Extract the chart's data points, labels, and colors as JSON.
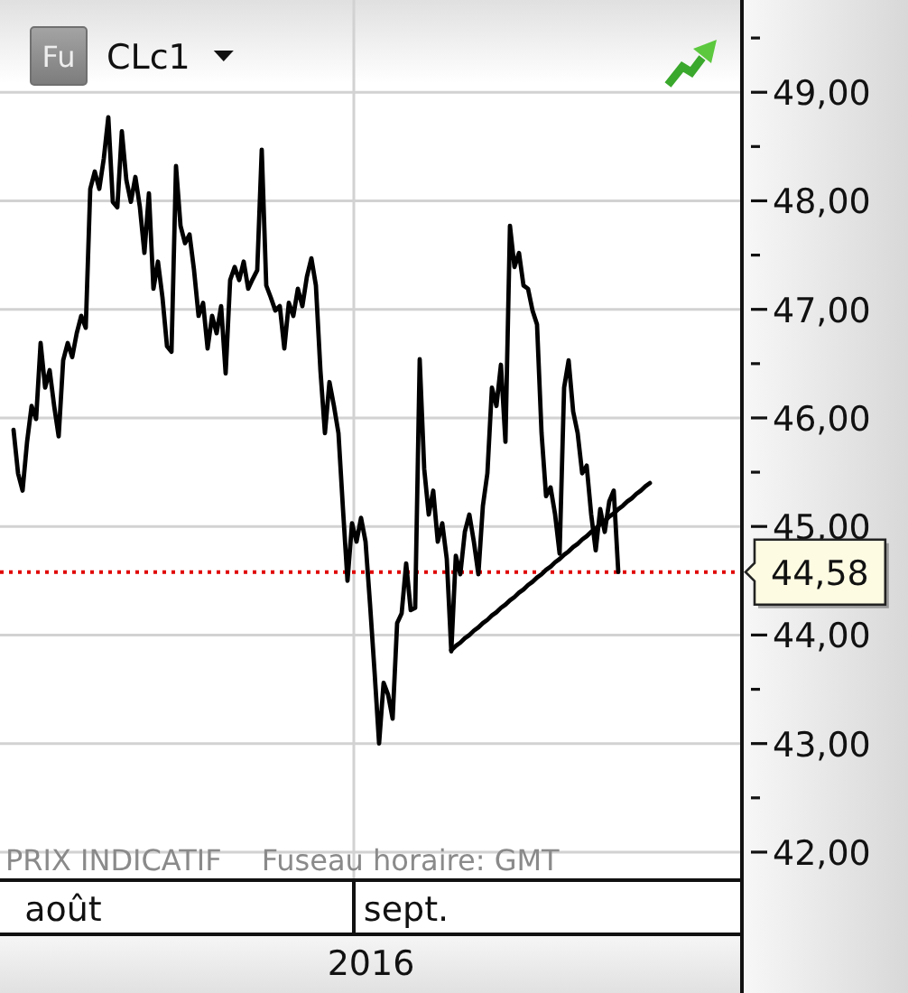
{
  "chart_data": {
    "type": "line",
    "title": "CLc1",
    "xlabel": "2016",
    "annotations": [
      "Fu",
      "PRIX INDICATIF",
      "Fuseau horaire: GMT"
    ],
    "categories": [
      null,
      null,
      null,
      null,
      null,
      null,
      null,
      null,
      null,
      null,
      null,
      null,
      null,
      null,
      "août",
      null,
      null,
      null,
      null,
      null,
      null,
      null,
      null,
      null,
      null,
      null,
      null,
      null,
      null,
      null,
      null,
      null,
      null,
      null,
      null,
      null,
      null,
      null,
      null,
      null,
      null,
      null,
      null,
      null,
      null,
      null,
      null,
      null,
      null,
      null,
      null,
      null,
      null,
      null,
      null,
      null,
      null,
      null,
      null,
      null,
      null,
      null,
      null,
      null,
      null,
      null,
      null,
      null,
      null,
      null,
      null,
      null,
      null,
      null,
      null,
      null,
      null,
      null,
      null,
      null,
      null,
      null,
      null,
      null,
      null,
      null,
      null,
      null,
      null,
      null,
      "sept.",
      null,
      null,
      null,
      null,
      null,
      null,
      null,
      null,
      null,
      null,
      null,
      null,
      null,
      null,
      null,
      null,
      null,
      null,
      null,
      null,
      null,
      null,
      null,
      null,
      null,
      null,
      null,
      null,
      null,
      null,
      null,
      null,
      null,
      null,
      null,
      null,
      null,
      null,
      null,
      null,
      null,
      null,
      null,
      null,
      null,
      null,
      null,
      null,
      null,
      null,
      null,
      null,
      null,
      null,
      null,
      null,
      null,
      null,
      null,
      null,
      null,
      null,
      null,
      null,
      null,
      null,
      null,
      null,
      null,
      null,
      null,
      null,
      null,
      null
    ],
    "series": [
      {
        "color": "#000000",
        "values": [
          null,
          null,
          null,
          45.89,
          45.49,
          45.33,
          45.78,
          46.11,
          45.99,
          46.69,
          46.28,
          46.44,
          46.11,
          45.83,
          46.53,
          46.69,
          46.56,
          46.78,
          46.94,
          46.83,
          48.11,
          48.27,
          48.11,
          48.39,
          48.77,
          47.99,
          47.94,
          48.64,
          48.19,
          47.99,
          48.22,
          47.94,
          47.52,
          48.07,
          47.19,
          47.44,
          47.11,
          46.66,
          46.61,
          48.32,
          47.77,
          47.61,
          47.69,
          47.36,
          46.94,
          47.06,
          46.64,
          46.94,
          46.78,
          47.03,
          46.41,
          47.27,
          47.39,
          47.27,
          47.44,
          47.19,
          47.28,
          47.36,
          48.47,
          47.22,
          47.11,
          46.99,
          47.03,
          46.64,
          47.06,
          46.94,
          47.19,
          47.03,
          47.3,
          47.47,
          47.22,
          46.44,
          45.86,
          46.33,
          46.11,
          45.86,
          45.16,
          44.5,
          45.03,
          44.86,
          45.08,
          44.86,
          44.28,
          43.66,
          43.0,
          43.56,
          43.45,
          43.23,
          44.11,
          44.2,
          44.66,
          44.23,
          44.25,
          46.54,
          45.53,
          45.11,
          45.33,
          44.86,
          45.03,
          44.7,
          43.85,
          44.73,
          44.56,
          44.95,
          45.11,
          44.86,
          44.56,
          45.19,
          45.49,
          46.28,
          46.11,
          46.49,
          45.78,
          47.77,
          47.39,
          47.52,
          47.22,
          47.19,
          46.99,
          46.86,
          45.86,
          45.28,
          45.36,
          45.11,
          44.75,
          46.28,
          46.53,
          46.06,
          45.86,
          45.49,
          45.56,
          45.11,
          44.78,
          45.16,
          44.95,
          45.23,
          45.33,
          44.58,
          null,
          null,
          null,
          null,
          null,
          null,
          null,
          null,
          null,
          null,
          null,
          null,
          null,
          null,
          null,
          null,
          null,
          null,
          null,
          null,
          null,
          null,
          null,
          null,
          null,
          null,
          null
        ]
      },
      {
        "type": "line",
        "color": "#000000",
        "values": [
          null,
          null,
          null,
          null,
          null,
          null,
          null,
          null,
          null,
          null,
          null,
          null,
          null,
          null,
          null,
          null,
          null,
          null,
          null,
          null,
          null,
          null,
          null,
          null,
          null,
          null,
          null,
          null,
          null,
          null,
          null,
          null,
          null,
          null,
          null,
          null,
          null,
          null,
          null,
          null,
          null,
          null,
          null,
          null,
          null,
          null,
          null,
          null,
          null,
          null,
          null,
          null,
          null,
          null,
          null,
          null,
          null,
          null,
          null,
          null,
          null,
          null,
          null,
          null,
          null,
          null,
          null,
          null,
          null,
          null,
          null,
          null,
          null,
          null,
          null,
          null,
          null,
          null,
          null,
          null,
          null,
          null,
          null,
          null,
          null,
          null,
          null,
          null,
          null,
          null,
          null,
          null,
          null,
          null,
          null,
          null,
          null,
          null,
          null,
          null,
          43.86,
          43.9,
          43.93,
          43.97,
          44.0,
          44.04,
          44.07,
          44.11,
          44.14,
          44.18,
          44.21,
          44.25,
          44.28,
          44.32,
          44.35,
          44.39,
          44.42,
          44.46,
          44.49,
          44.53,
          44.56,
          44.6,
          44.63,
          44.67,
          44.7,
          44.74,
          44.77,
          44.81,
          44.84,
          44.88,
          44.91,
          44.95,
          44.98,
          45.02,
          45.05,
          45.09,
          45.12,
          45.16,
          45.19,
          45.23,
          45.26,
          45.3,
          45.33,
          45.37,
          45.4,
          null,
          null,
          null,
          null,
          null,
          null,
          null,
          null,
          null,
          null,
          null,
          null,
          null,
          null,
          null,
          null,
          null,
          null,
          null,
          null
        ]
      }
    ],
    "ylim": [
      41.75,
      49.85
    ],
    "yticks": [
      {
        "value": 42,
        "label": "42,00"
      },
      {
        "value": 42.5,
        "label": null
      },
      {
        "value": 43,
        "label": "43,00"
      },
      {
        "value": 43.5,
        "label": null
      },
      {
        "value": 44,
        "label": "44,00"
      },
      {
        "value": 45,
        "label": "45,00"
      },
      {
        "value": 45.5,
        "label": null
      },
      {
        "value": 46,
        "label": "46,00"
      },
      {
        "value": 46.5,
        "label": null
      },
      {
        "value": 47,
        "label": "47,00"
      },
      {
        "value": 47.5,
        "label": null
      },
      {
        "value": 48,
        "label": "48,00"
      },
      {
        "value": 48.5,
        "label": null
      },
      {
        "value": 49,
        "label": "49,00"
      },
      {
        "value": 49.5,
        "label": null
      }
    ],
    "grid": "y",
    "ref_lines": [
      {
        "axis": "y",
        "value": 44.58,
        "label": "44,58",
        "color": "#e00000",
        "line_style": "dotted"
      }
    ]
  }
}
